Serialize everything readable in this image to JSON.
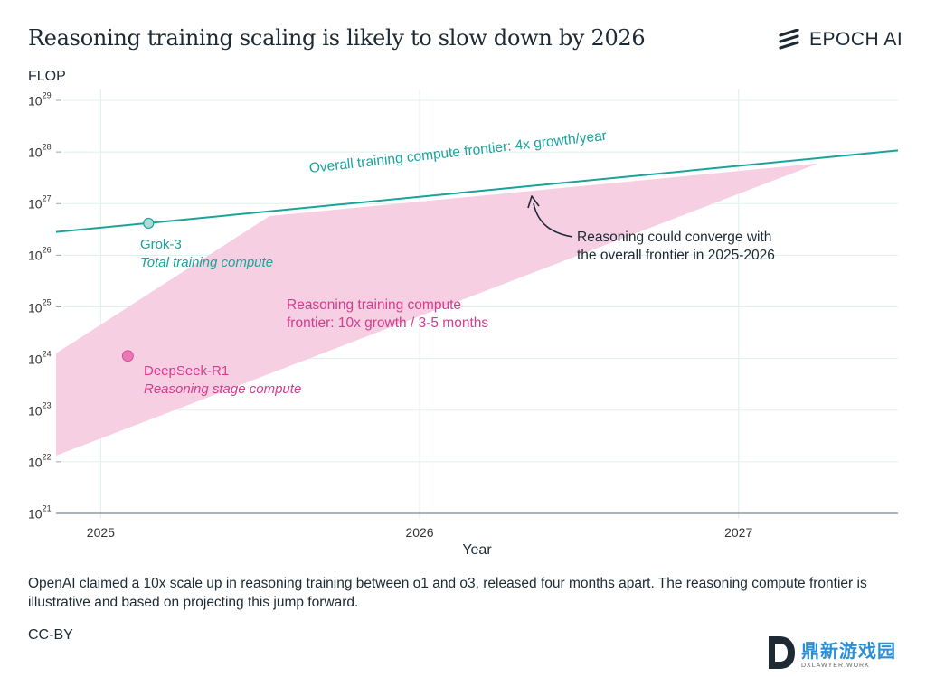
{
  "title": "Reasoning training scaling is likely to slow down by 2026",
  "brand": {
    "name": "EPOCH AI",
    "icon": "epoch-logo-icon"
  },
  "caption": "OpenAI claimed a 10x scale up in reasoning training between o1 and o3, released four months apart. The reasoning compute frontier is illustrative and based on projecting this jump forward.",
  "license": "CC-BY",
  "watermark": {
    "cn": "鼎新游戏园",
    "en": "DXLAWYER.WORK"
  },
  "colors": {
    "teal": "#1aa39a",
    "pink": "#d63c8e",
    "band": "#f6cfe3",
    "grid": "#dff0ee",
    "text": "#1d2a33"
  },
  "chart_data": {
    "type": "line",
    "title": "Reasoning training scaling is likely to slow down by 2026",
    "xlabel": "Year",
    "ylabel": "FLOP",
    "yscale": "log10",
    "xlim": [
      2024.86,
      2027.5
    ],
    "ylim_exp": [
      21,
      29
    ],
    "x_ticks": [
      2025,
      2026,
      2027
    ],
    "x_tick_labels": [
      "2025",
      "2026",
      "2027"
    ],
    "y_tick_exps": [
      29,
      28,
      27,
      26,
      25,
      24,
      23,
      22,
      21
    ],
    "y_tick_base": "10",
    "series": [
      {
        "name": "Overall training compute frontier: 4x growth/year",
        "color": "#1aa39a",
        "x": [
          2024.86,
          2027.5
        ],
        "y_exp": [
          26.45,
          28.03
        ]
      }
    ],
    "band": {
      "name": "Reasoning training compute frontier: 10x growth / 3-5 months",
      "color": "#f6cfe3",
      "upper": {
        "x": [
          2024.86,
          2025.53,
          2027.25
        ],
        "y_exp": [
          24.1,
          26.76,
          27.78
        ]
      },
      "lower": {
        "x": [
          2024.86,
          2027.25
        ],
        "y_exp": [
          22.12,
          27.78
        ]
      }
    },
    "points": [
      {
        "name": "Grok-3",
        "sublabel": "Total training compute",
        "x": 2025.15,
        "y_exp": 26.62,
        "color": "#1aa39a"
      },
      {
        "name": "DeepSeek-R1",
        "sublabel": "Reasoning stage compute",
        "x": 2025.085,
        "y_exp": 24.05,
        "color": "#e879b3"
      }
    ],
    "annotations": {
      "overall": "Overall training compute frontier: 4x growth/year",
      "reasoning_line1": "Reasoning training compute",
      "reasoning_line2": "frontier: 10x growth / 3-5 months",
      "converge_line1": "Reasoning could converge with",
      "converge_line2": "the overall frontier in 2025-2026"
    }
  }
}
